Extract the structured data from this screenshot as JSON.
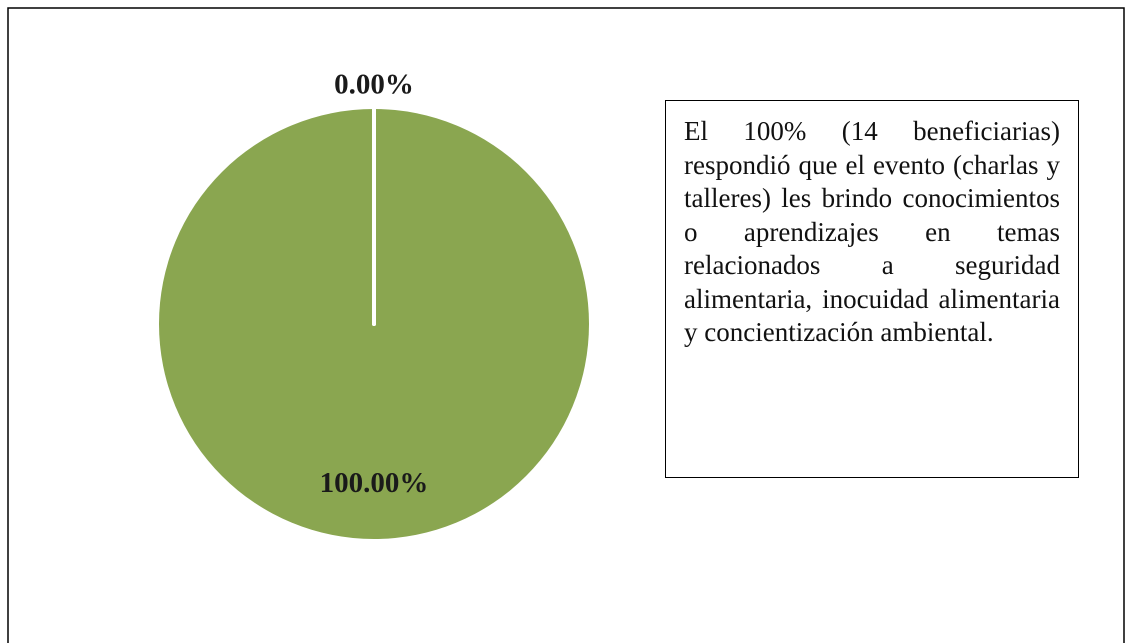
{
  "chart_data": {
    "type": "pie",
    "values": [
      0,
      100
    ],
    "value_labels": [
      "0.00%",
      "100.00%"
    ],
    "colors": [
      "#4f81bd",
      "#8aa650"
    ],
    "annotation": "El 100% (14 beneficiarias) respondió que el evento (charlas y talleres) les brindo conocimientos o aprendizajes en temas relacionados a seguridad alimentaria, inocuidad alimentaria y concientización ambiental."
  }
}
